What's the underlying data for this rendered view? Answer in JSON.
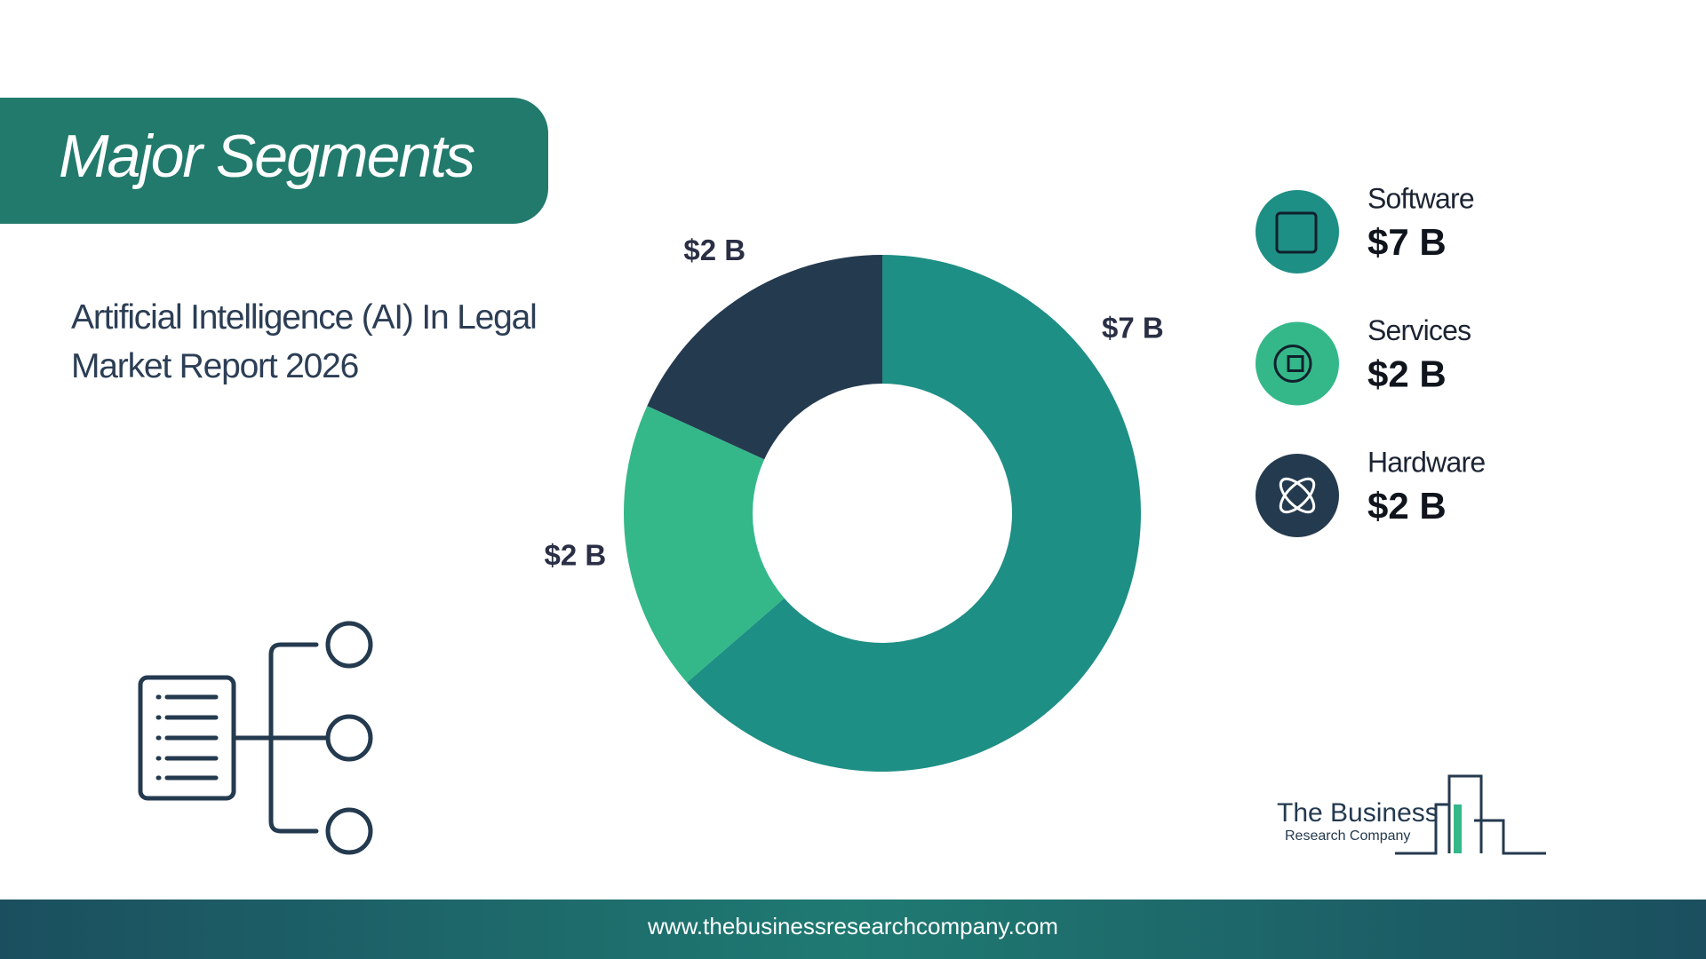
{
  "chart_data": {
    "type": "donut",
    "title": "Major Segments",
    "subtitle": "Artificial Intelligence (AI) In Legal Market Report 2026",
    "categories": [
      "Software",
      "Services",
      "Hardware"
    ],
    "values": [
      7,
      2,
      2
    ],
    "value_labels": [
      "$7 B",
      "$2 B",
      "$2 B"
    ],
    "colors": [
      "#1e8f85",
      "#34b889",
      "#243a4f"
    ]
  },
  "logo": {
    "line1": "The Business",
    "line2": "Research Company"
  },
  "footer": {
    "url": "www.thebusinessresearchcompany.com"
  }
}
